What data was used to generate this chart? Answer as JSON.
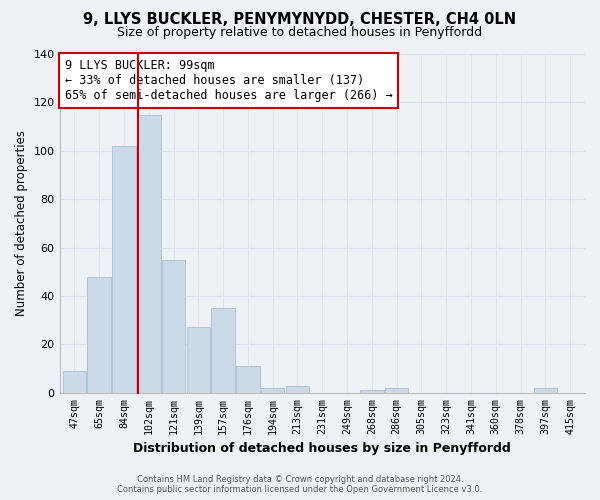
{
  "title": "9, LLYS BUCKLER, PENYMYNYDD, CHESTER, CH4 0LN",
  "subtitle": "Size of property relative to detached houses in Penyffordd",
  "xlabel": "Distribution of detached houses by size in Penyffordd",
  "ylabel": "Number of detached properties",
  "categories": [
    "47sqm",
    "65sqm",
    "84sqm",
    "102sqm",
    "121sqm",
    "139sqm",
    "157sqm",
    "176sqm",
    "194sqm",
    "213sqm",
    "231sqm",
    "249sqm",
    "268sqm",
    "286sqm",
    "305sqm",
    "323sqm",
    "341sqm",
    "360sqm",
    "378sqm",
    "397sqm",
    "415sqm"
  ],
  "values": [
    9,
    48,
    102,
    115,
    55,
    27,
    35,
    11,
    2,
    3,
    0,
    0,
    1,
    2,
    0,
    0,
    0,
    0,
    0,
    2,
    0
  ],
  "bar_color": "#ccd9e8",
  "bar_edge_color": "#a8bfd4",
  "highlight_line_color": "#cc0000",
  "annotation_line1": "9 LLYS BUCKLER: 99sqm",
  "annotation_line2": "← 33% of detached houses are smaller (137)",
  "annotation_line3": "65% of semi-detached houses are larger (266) →",
  "annotation_box_color": "#ffffff",
  "annotation_box_edge": "#cc0000",
  "ylim": [
    0,
    140
  ],
  "yticks": [
    0,
    20,
    40,
    60,
    80,
    100,
    120,
    140
  ],
  "footer_line1": "Contains HM Land Registry data © Crown copyright and database right 2024.",
  "footer_line2": "Contains public sector information licensed under the Open Government Licence v3.0.",
  "bg_color": "#eef2f7",
  "grid_color": "#d8dfe8"
}
